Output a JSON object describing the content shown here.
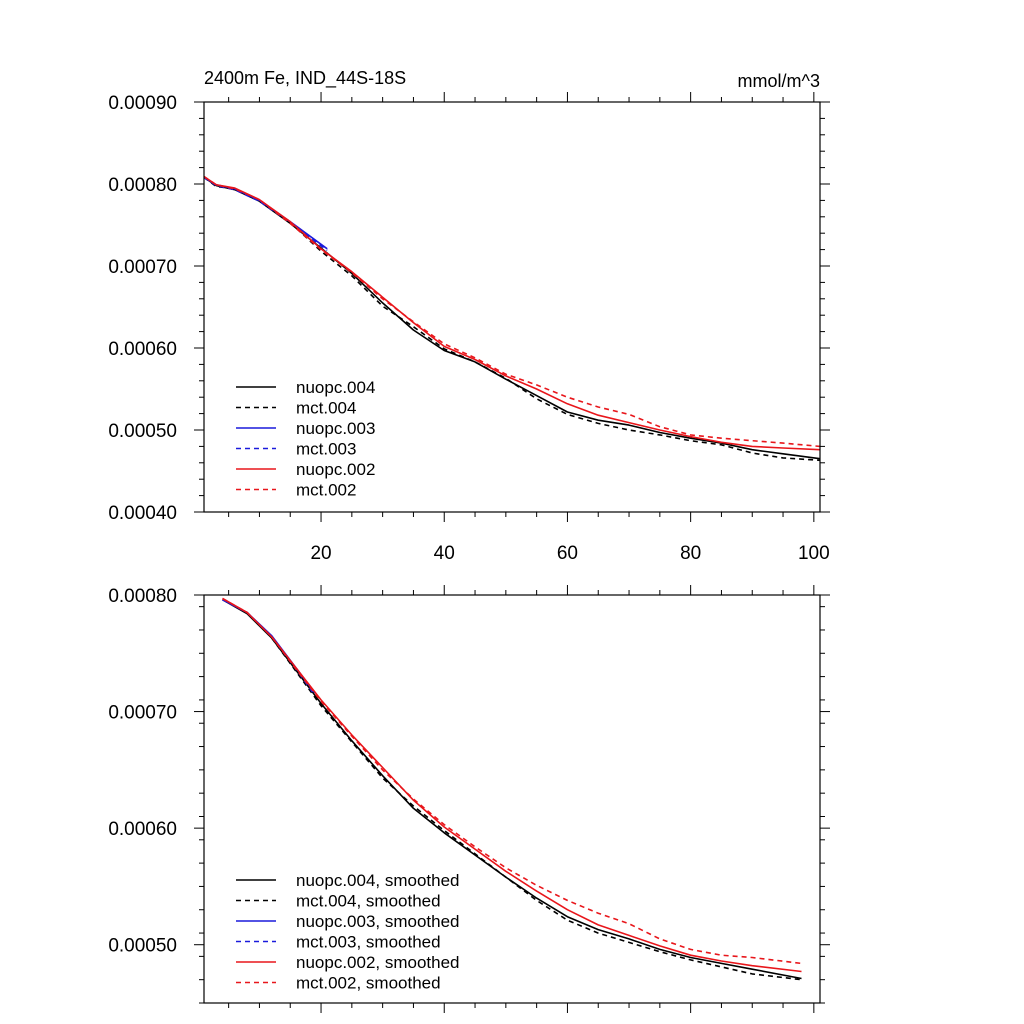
{
  "chart_data": [
    {
      "type": "line",
      "title": "2400m Fe, IND_44S-18S",
      "units": "mmol/m^3",
      "xlim": [
        1,
        101
      ],
      "ylim": [
        0.0004,
        0.0009
      ],
      "xticks": [
        20,
        40,
        60,
        80,
        100
      ],
      "yticks": [
        0.0004,
        0.0005,
        0.0006,
        0.0007,
        0.0008,
        0.0009
      ],
      "ytick_labels": [
        "0.00040",
        "0.00050",
        "0.00060",
        "0.00070",
        "0.00080",
        "0.00090"
      ],
      "xtick_labels": [
        "20",
        "40",
        "60",
        "80",
        "100"
      ],
      "series": [
        {
          "name": "nuopc.004",
          "color": "#000000",
          "dash": false,
          "x": [
            1,
            3,
            6,
            10,
            15,
            20,
            25,
            30,
            35,
            40,
            45,
            50,
            55,
            60,
            65,
            70,
            75,
            80,
            85,
            90,
            95,
            101
          ],
          "y": [
            0.000808,
            0.000798,
            0.000793,
            0.000779,
            0.000752,
            0.000722,
            0.000691,
            0.000655,
            0.000622,
            0.000597,
            0.000583,
            0.000562,
            0.000542,
            0.000522,
            0.000512,
            0.000506,
            0.000497,
            0.00049,
            0.000484,
            0.000476,
            0.000471,
            0.000465
          ]
        },
        {
          "name": "mct.004",
          "color": "#000000",
          "dash": true,
          "x": [
            1,
            3,
            6,
            10,
            15,
            20,
            25,
            30,
            35,
            40,
            45,
            50,
            55,
            60,
            65,
            70,
            75,
            80,
            85,
            90,
            95,
            101
          ],
          "y": [
            0.000808,
            0.000797,
            0.000794,
            0.00078,
            0.000753,
            0.000718,
            0.000688,
            0.000651,
            0.000626,
            0.000599,
            0.000583,
            0.000563,
            0.000538,
            0.000519,
            0.000508,
            0.0005,
            0.000494,
            0.000487,
            0.000482,
            0.000472,
            0.000466,
            0.000463
          ]
        },
        {
          "name": "nuopc.003",
          "color": "#1a1adc",
          "dash": false,
          "x": [
            1,
            3,
            6,
            10,
            15,
            21
          ],
          "y": [
            0.000808,
            0.000799,
            0.000794,
            0.00078,
            0.000754,
            0.000721
          ]
        },
        {
          "name": "mct.003",
          "color": "#1a1adc",
          "dash": true,
          "x": [
            1,
            3,
            6,
            10,
            15,
            21
          ],
          "y": [
            0.000808,
            0.000798,
            0.000793,
            0.000779,
            0.000753,
            0.000719
          ]
        },
        {
          "name": "nuopc.002",
          "color": "#e8161b",
          "dash": false,
          "x": [
            1,
            3,
            6,
            10,
            15,
            20,
            25,
            30,
            35,
            40,
            45,
            50,
            55,
            60,
            65,
            70,
            75,
            80,
            85,
            90,
            95,
            101
          ],
          "y": [
            0.000809,
            0.000799,
            0.000795,
            0.000781,
            0.000754,
            0.000721,
            0.000693,
            0.000662,
            0.000631,
            0.000602,
            0.000586,
            0.000566,
            0.00055,
            0.000532,
            0.000518,
            0.000509,
            0.0005,
            0.000492,
            0.000485,
            0.00048,
            0.000478,
            0.000476
          ]
        },
        {
          "name": "mct.002",
          "color": "#e8161b",
          "dash": true,
          "x": [
            1,
            3,
            6,
            10,
            15,
            20,
            25,
            30,
            35,
            40,
            45,
            50,
            55,
            60,
            65,
            70,
            75,
            80,
            85,
            90,
            95,
            101
          ],
          "y": [
            0.000809,
            0.000799,
            0.000794,
            0.000781,
            0.000752,
            0.00072,
            0.000692,
            0.00066,
            0.000632,
            0.000605,
            0.000588,
            0.000568,
            0.000555,
            0.00054,
            0.000528,
            0.000519,
            0.000504,
            0.000494,
            0.00049,
            0.000487,
            0.000484,
            0.00048
          ]
        }
      ]
    },
    {
      "type": "line",
      "title": "",
      "xlim": [
        1,
        101
      ],
      "ylim": [
        0.00045,
        0.0008
      ],
      "xticks": [
        20,
        40,
        60,
        80,
        100
      ],
      "yticks": [
        0.0005,
        0.0006,
        0.0007,
        0.0008
      ],
      "ytick_labels": [
        "0.00050",
        "0.00060",
        "0.00070",
        "0.00080"
      ],
      "series": [
        {
          "name": "nuopc.004, smoothed",
          "color": "#000000",
          "dash": false,
          "x": [
            4,
            8,
            12,
            16,
            20,
            25,
            30,
            35,
            40,
            45,
            50,
            55,
            60,
            65,
            70,
            75,
            80,
            85,
            90,
            98
          ],
          "y": [
            0.000796,
            0.000784,
            0.000763,
            0.000735,
            0.000707,
            0.000675,
            0.000645,
            0.000617,
            0.000596,
            0.000577,
            0.000558,
            0.00054,
            0.000524,
            0.000513,
            0.000505,
            0.000496,
            0.000489,
            0.000484,
            0.000479,
            0.000471
          ]
        },
        {
          "name": "mct.004, smoothed",
          "color": "#000000",
          "dash": true,
          "x": [
            4,
            8,
            12,
            16,
            20,
            25,
            30,
            35,
            40,
            45,
            50,
            55,
            60,
            65,
            70,
            75,
            80,
            85,
            90,
            98
          ],
          "y": [
            0.000796,
            0.000785,
            0.000763,
            0.000734,
            0.000705,
            0.000674,
            0.000643,
            0.000619,
            0.000598,
            0.000578,
            0.000558,
            0.000538,
            0.000521,
            0.00051,
            0.000502,
            0.000494,
            0.000487,
            0.000481,
            0.000475,
            0.00047
          ]
        },
        {
          "name": "nuopc.003, smoothed",
          "color": "#1a1adc",
          "dash": false,
          "x": [
            4,
            8,
            12,
            16,
            19
          ],
          "y": [
            0.000796,
            0.000785,
            0.000765,
            0.000737,
            0.000716
          ]
        },
        {
          "name": "mct.003, smoothed",
          "color": "#1a1adc",
          "dash": true,
          "x": [
            4,
            8,
            12,
            16,
            19
          ],
          "y": [
            0.000796,
            0.000785,
            0.000764,
            0.000736,
            0.000714
          ]
        },
        {
          "name": "nuopc.002, smoothed",
          "color": "#e8161b",
          "dash": false,
          "x": [
            4,
            8,
            12,
            16,
            20,
            25,
            30,
            35,
            40,
            45,
            50,
            55,
            60,
            65,
            70,
            75,
            80,
            85,
            90,
            98
          ],
          "y": [
            0.000797,
            0.000785,
            0.000764,
            0.000737,
            0.00071,
            0.00068,
            0.000652,
            0.000624,
            0.000601,
            0.000582,
            0.000563,
            0.000546,
            0.00053,
            0.000517,
            0.000508,
            0.000499,
            0.000491,
            0.000486,
            0.000482,
            0.000477
          ]
        },
        {
          "name": "mct.002, smoothed",
          "color": "#e8161b",
          "dash": true,
          "x": [
            4,
            8,
            12,
            16,
            20,
            25,
            30,
            35,
            40,
            45,
            50,
            55,
            60,
            65,
            70,
            75,
            80,
            85,
            90,
            98
          ],
          "y": [
            0.000797,
            0.000785,
            0.000764,
            0.000736,
            0.000709,
            0.000679,
            0.00065,
            0.000625,
            0.000603,
            0.000584,
            0.000566,
            0.000551,
            0.000538,
            0.000527,
            0.000518,
            0.000505,
            0.000496,
            0.000491,
            0.000489,
            0.000484
          ]
        }
      ]
    }
  ]
}
